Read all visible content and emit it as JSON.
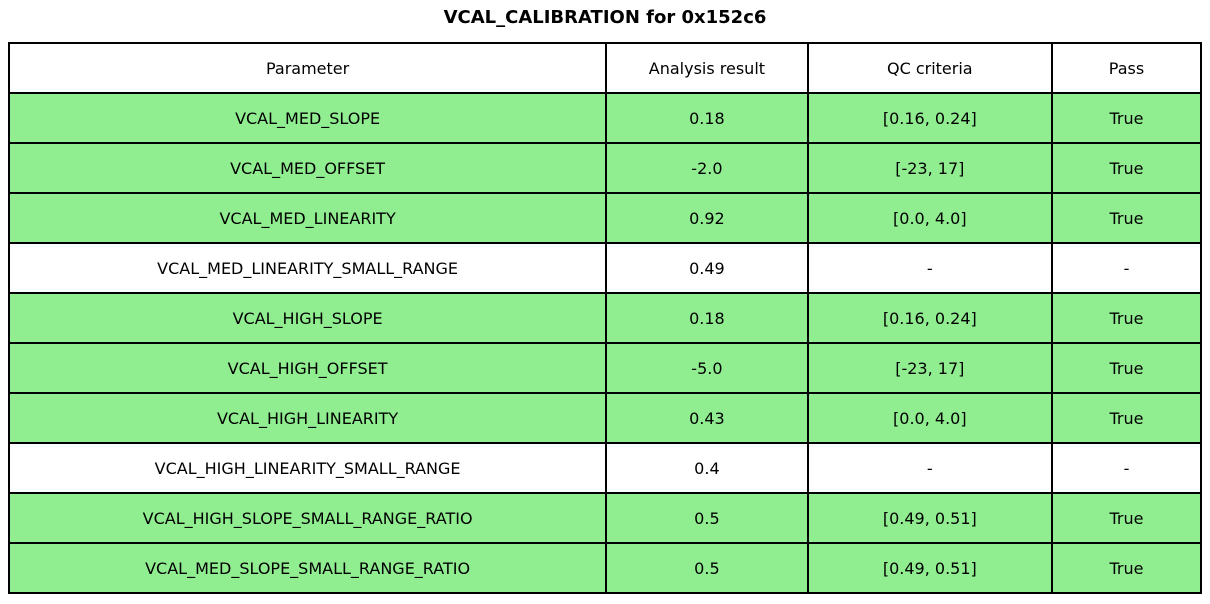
{
  "title": "VCAL_CALIBRATION for 0x152c6",
  "colors": {
    "pass_row_green": "#90EE90",
    "plain_row_white": "#ffffff",
    "border_black": "#000000"
  },
  "table": {
    "columns": [
      "Parameter",
      "Analysis result",
      "QC criteria",
      "Pass"
    ],
    "rows": [
      {
        "parameter": "VCAL_MED_SLOPE",
        "result": "0.18",
        "qc": "[0.16, 0.24]",
        "pass": "True",
        "highlight": true
      },
      {
        "parameter": "VCAL_MED_OFFSET",
        "result": "-2.0",
        "qc": "[-23, 17]",
        "pass": "True",
        "highlight": true
      },
      {
        "parameter": "VCAL_MED_LINEARITY",
        "result": "0.92",
        "qc": "[0.0, 4.0]",
        "pass": "True",
        "highlight": true
      },
      {
        "parameter": "VCAL_MED_LINEARITY_SMALL_RANGE",
        "result": "0.49",
        "qc": "-",
        "pass": "-",
        "highlight": false
      },
      {
        "parameter": "VCAL_HIGH_SLOPE",
        "result": "0.18",
        "qc": "[0.16, 0.24]",
        "pass": "True",
        "highlight": true
      },
      {
        "parameter": "VCAL_HIGH_OFFSET",
        "result": "-5.0",
        "qc": "[-23, 17]",
        "pass": "True",
        "highlight": true
      },
      {
        "parameter": "VCAL_HIGH_LINEARITY",
        "result": "0.43",
        "qc": "[0.0, 4.0]",
        "pass": "True",
        "highlight": true
      },
      {
        "parameter": "VCAL_HIGH_LINEARITY_SMALL_RANGE",
        "result": "0.4",
        "qc": "-",
        "pass": "-",
        "highlight": false
      },
      {
        "parameter": "VCAL_HIGH_SLOPE_SMALL_RANGE_RATIO",
        "result": "0.5",
        "qc": "[0.49, 0.51]",
        "pass": "True",
        "highlight": true
      },
      {
        "parameter": "VCAL_MED_SLOPE_SMALL_RANGE_RATIO",
        "result": "0.5",
        "qc": "[0.49, 0.51]",
        "pass": "True",
        "highlight": true
      }
    ]
  },
  "chart_data": {
    "type": "table",
    "title": "VCAL_CALIBRATION for 0x152c6",
    "columns": [
      "Parameter",
      "Analysis result",
      "QC criteria",
      "Pass"
    ],
    "rows": [
      [
        "VCAL_MED_SLOPE",
        0.18,
        "[0.16, 0.24]",
        "True"
      ],
      [
        "VCAL_MED_OFFSET",
        -2.0,
        "[-23, 17]",
        "True"
      ],
      [
        "VCAL_MED_LINEARITY",
        0.92,
        "[0.0, 4.0]",
        "True"
      ],
      [
        "VCAL_MED_LINEARITY_SMALL_RANGE",
        0.49,
        "-",
        "-"
      ],
      [
        "VCAL_HIGH_SLOPE",
        0.18,
        "[0.16, 0.24]",
        "True"
      ],
      [
        "VCAL_HIGH_OFFSET",
        -5.0,
        "[-23, 17]",
        "True"
      ],
      [
        "VCAL_HIGH_LINEARITY",
        0.43,
        "[0.0, 4.0]",
        "True"
      ],
      [
        "VCAL_HIGH_LINEARITY_SMALL_RANGE",
        0.4,
        "-",
        "-"
      ],
      [
        "VCAL_HIGH_SLOPE_SMALL_RANGE_RATIO",
        0.5,
        "[0.49, 0.51]",
        "True"
      ],
      [
        "VCAL_MED_SLOPE_SMALL_RANGE_RATIO",
        0.5,
        "[0.49, 0.51]",
        "True"
      ]
    ],
    "layout_hints": {
      "row_highlight_color_when_pass": "#90EE90",
      "grid": "on",
      "legend": "none"
    }
  }
}
